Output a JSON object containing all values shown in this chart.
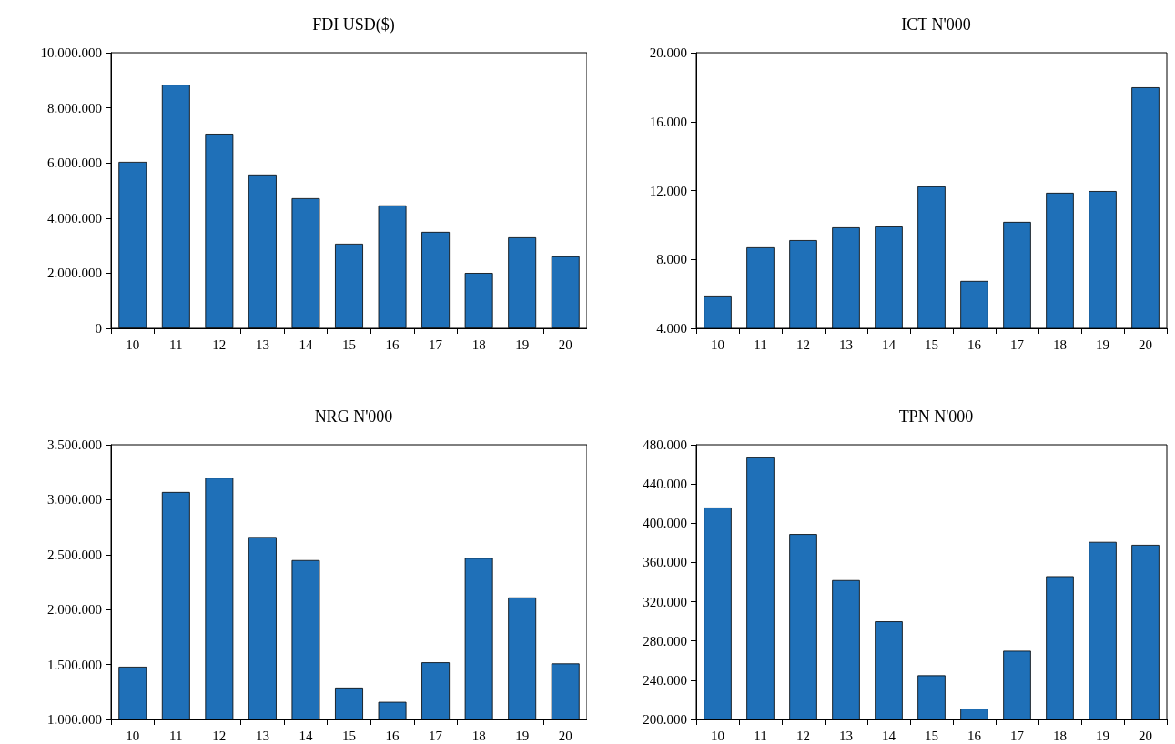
{
  "chart_data": [
    {
      "type": "bar",
      "title": "FDI USD($)",
      "categories": [
        "10",
        "11",
        "12",
        "13",
        "14",
        "15",
        "16",
        "17",
        "18",
        "19",
        "20"
      ],
      "values": [
        6040000,
        8840000,
        7060000,
        5580000,
        4720000,
        3070000,
        4460000,
        3500000,
        2010000,
        3300000,
        2610000
      ],
      "color": "#1f70b8",
      "ylim": [
        0,
        10000000
      ],
      "yticks": [
        {
          "value": 0,
          "label": "0"
        },
        {
          "value": 2000000,
          "label": "2.000.000"
        },
        {
          "value": 4000000,
          "label": "4.000.000"
        },
        {
          "value": 6000000,
          "label": "6.000.000"
        },
        {
          "value": 8000000,
          "label": "8.000.000"
        },
        {
          "value": 10000000,
          "label": "10.000.000"
        }
      ]
    },
    {
      "type": "bar",
      "title": "ICT N'000",
      "categories": [
        "10",
        "11",
        "12",
        "13",
        "14",
        "15",
        "16",
        "17",
        "18",
        "19",
        "20"
      ],
      "values": [
        5900,
        8700,
        9120,
        9860,
        9910,
        12240,
        6750,
        10180,
        11870,
        11970,
        17990
      ],
      "color": "#1f70b8",
      "ylim": [
        4000,
        20000
      ],
      "yticks": [
        {
          "value": 4000,
          "label": "4.000"
        },
        {
          "value": 8000,
          "label": "8.000"
        },
        {
          "value": 12000,
          "label": "12.000"
        },
        {
          "value": 16000,
          "label": "16.000"
        },
        {
          "value": 20000,
          "label": "20.000"
        }
      ]
    },
    {
      "type": "bar",
      "title": "NRG N'000",
      "categories": [
        "10",
        "11",
        "12",
        "13",
        "14",
        "15",
        "16",
        "17",
        "18",
        "19",
        "20"
      ],
      "values": [
        1480000,
        3070000,
        3200000,
        2660000,
        2450000,
        1290000,
        1160000,
        1520000,
        2470000,
        2110000,
        1510000
      ],
      "color": "#1f70b8",
      "ylim": [
        1000000,
        3500000
      ],
      "yticks": [
        {
          "value": 1000000,
          "label": "1.000.000"
        },
        {
          "value": 1500000,
          "label": "1.500.000"
        },
        {
          "value": 2000000,
          "label": "2.000.000"
        },
        {
          "value": 2500000,
          "label": "2.500.000"
        },
        {
          "value": 3000000,
          "label": "3.000.000"
        },
        {
          "value": 3500000,
          "label": "3.500.000"
        }
      ]
    },
    {
      "type": "bar",
      "title": "TPN N'000",
      "categories": [
        "10",
        "11",
        "12",
        "13",
        "14",
        "15",
        "16",
        "17",
        "18",
        "19",
        "20"
      ],
      "values": [
        416000,
        467000,
        389000,
        342000,
        300000,
        245000,
        211000,
        270000,
        346000,
        381000,
        378000
      ],
      "color": "#1f70b8",
      "ylim": [
        200000,
        480000
      ],
      "yticks": [
        {
          "value": 200000,
          "label": "200.000"
        },
        {
          "value": 240000,
          "label": "240.000"
        },
        {
          "value": 280000,
          "label": "280.000"
        },
        {
          "value": 320000,
          "label": "320.000"
        },
        {
          "value": 360000,
          "label": "360.000"
        },
        {
          "value": 400000,
          "label": "400.000"
        },
        {
          "value": 440000,
          "label": "440.000"
        },
        {
          "value": 480000,
          "label": "480.000"
        }
      ]
    }
  ]
}
